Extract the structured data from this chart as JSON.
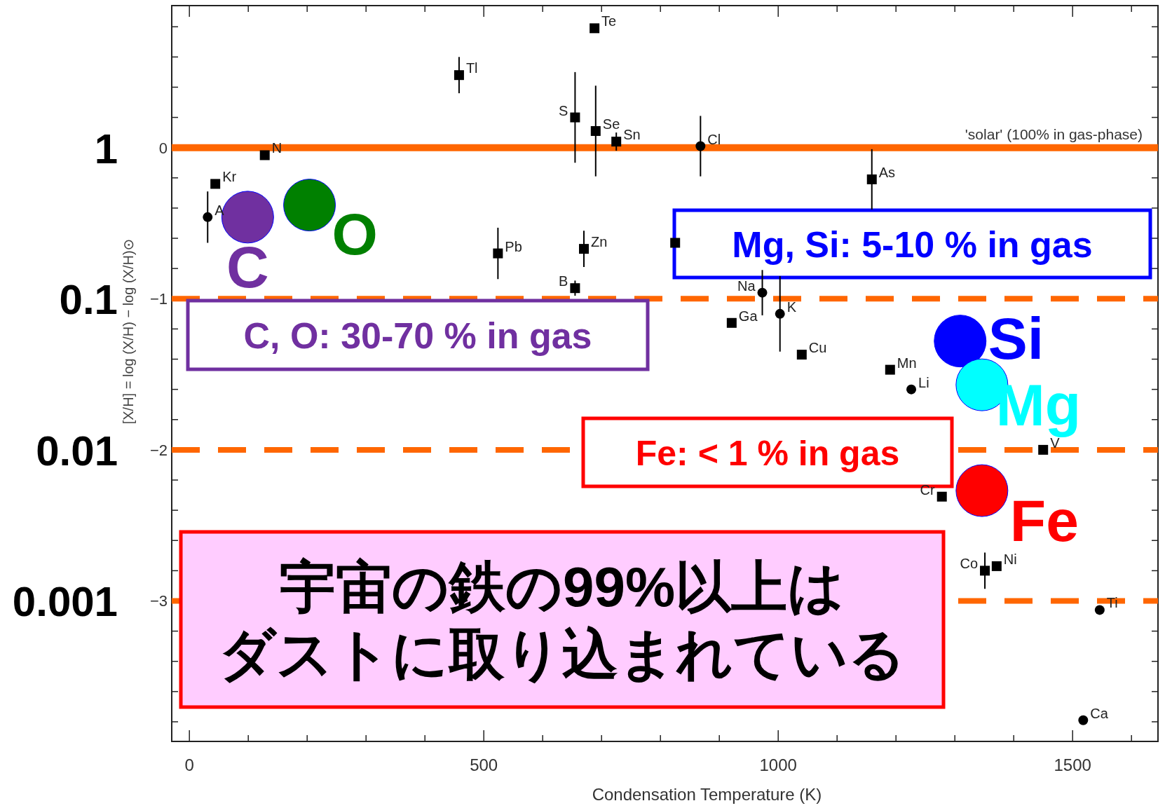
{
  "chart_data": {
    "type": "scatter",
    "xlabel": "Condensation Temperature (K)",
    "ylabel": "[X/H] = log (X/H) − log (X/H)⊙",
    "xlim": [
      -30,
      1645
    ],
    "ylim": [
      -3.93,
      0.94
    ],
    "xticks": [
      {
        "value": 0,
        "label": "0"
      },
      {
        "value": 100,
        "label": null
      },
      {
        "value": 200,
        "label": null
      },
      {
        "value": 300,
        "label": null
      },
      {
        "value": 400,
        "label": null
      },
      {
        "value": 500,
        "label": "500"
      },
      {
        "value": 600,
        "label": null
      },
      {
        "value": 700,
        "label": null
      },
      {
        "value": 800,
        "label": null
      },
      {
        "value": 900,
        "label": null
      },
      {
        "value": 1000,
        "label": "1000"
      },
      {
        "value": 1100,
        "label": null
      },
      {
        "value": 1200,
        "label": null
      },
      {
        "value": 1300,
        "label": null
      },
      {
        "value": 1400,
        "label": null
      },
      {
        "value": 1500,
        "label": "1500"
      },
      {
        "value": 1600,
        "label": null
      }
    ],
    "yticks": [
      {
        "value": 0.8,
        "label": null
      },
      {
        "value": 0.6,
        "label": null
      },
      {
        "value": 0.4,
        "label": null
      },
      {
        "value": 0.2,
        "label": null
      },
      0,
      {
        "value": -0.2,
        "label": null
      },
      {
        "value": -0.4,
        "label": null
      },
      {
        "value": -0.6,
        "label": null
      },
      {
        "value": -0.8,
        "label": null
      },
      -1,
      {
        "value": -1.2,
        "label": null
      },
      {
        "value": -1.4,
        "label": null
      },
      {
        "value": -1.6,
        "label": null
      },
      {
        "value": -1.8,
        "label": null
      },
      -2,
      {
        "value": -2.2,
        "label": null
      },
      {
        "value": -2.4,
        "label": null
      },
      {
        "value": -2.6,
        "label": null
      },
      {
        "value": -2.8,
        "label": null
      },
      -3,
      {
        "value": -3.2,
        "label": null
      },
      {
        "value": -3.4,
        "label": null
      },
      {
        "value": -3.6,
        "label": null
      },
      {
        "value": -3.8,
        "label": null
      }
    ],
    "log": "y2",
    "y2lim": [
      0.000117,
      8.7
    ],
    "y2ticks": [
      1,
      0.1,
      0.01,
      0.001
    ],
    "series": [
      {
        "marker": "square",
        "color": "#000000",
        "x": [
          688,
          458,
          655,
          690,
          725,
          128,
          44,
          524,
          670,
          655,
          825,
          921,
          1040,
          1190,
          1159,
          1450,
          1278,
          1351,
          1371
        ],
        "values": [
          0.79,
          0.48,
          0.2,
          0.11,
          0.04,
          -0.05,
          -0.24,
          -0.7,
          -0.67,
          -0.93,
          -0.63,
          -1.16,
          -1.37,
          -1.47,
          -0.21,
          -2.0,
          -2.31,
          -2.8,
          -2.77
        ],
        "errors": [
          null,
          0.12,
          0.3,
          0.3,
          0.06,
          null,
          null,
          0.17,
          0.12,
          0.05,
          null,
          null,
          null,
          null,
          0.2,
          null,
          null,
          0.12,
          null
        ]
      },
      {
        "marker": "circle",
        "color": "#000000",
        "x": [
          868,
          31,
          973,
          1003,
          1226,
          1546,
          1518
        ],
        "values": [
          0.01,
          -0.46,
          -0.96,
          -1.1,
          -1.6,
          -3.06,
          -3.79
        ],
        "errors": [
          0.2,
          0.17,
          0.15,
          0.25,
          null,
          null,
          null
        ]
      },
      {
        "marker": "circle",
        "name": "C",
        "color": "#7030a0",
        "x": [
          99
        ],
        "values": [
          -0.46
        ]
      },
      {
        "marker": "circle",
        "name": "O",
        "color": "#008000",
        "x": [
          204
        ],
        "values": [
          -0.38
        ]
      },
      {
        "marker": "circle",
        "name": "Si",
        "color": "#0000ff",
        "x": [
          1309
        ],
        "values": [
          -1.28
        ]
      },
      {
        "marker": "circle",
        "name": "Mg",
        "color": "#00ffff",
        "x": [
          1346
        ],
        "values": [
          -1.57
        ]
      },
      {
        "marker": "circle",
        "name": "Fe",
        "color": "#ff0000",
        "x": [
          1346
        ],
        "values": [
          -2.27
        ]
      }
    ],
    "ref_lines": [
      {
        "axis": "y",
        "value": 0,
        "color": "#ff6600",
        "line_style": "solid"
      },
      {
        "axis": "y",
        "value": -1,
        "color": "#ff6600",
        "line_style": "dashed"
      },
      {
        "axis": "y",
        "value": -2,
        "color": "#ff6600",
        "line_style": "dashed"
      },
      {
        "axis": "y",
        "value": -3,
        "color": "#ff6600",
        "line_style": "dashed"
      }
    ],
    "annotations": [
      "'solar' (100% in gas-phase)",
      "C, O: 30-70 % in gas",
      "Mg, Si: 5-10 % in gas",
      "Fe: < 1 % in gas",
      "宇宙の鉄の99%以上はダストに取り込まれている",
      {
        "text": "Te",
        "x": 688,
        "y": 0.79
      },
      {
        "text": "Tl",
        "x": 458,
        "y": 0.48
      },
      {
        "text": "S",
        "x": 655,
        "y": 0.2
      },
      {
        "text": "Se",
        "x": 690,
        "y": 0.11
      },
      {
        "text": "Sn",
        "x": 725,
        "y": 0.04
      },
      {
        "text": "N",
        "x": 128,
        "y": -0.05
      },
      {
        "text": "Kr",
        "x": 44,
        "y": -0.24
      },
      {
        "text": "Pb",
        "x": 524,
        "y": -0.7
      },
      {
        "text": "Zn",
        "x": 670,
        "y": -0.67
      },
      {
        "text": "B",
        "x": 655,
        "y": -0.93
      },
      {
        "text": "Ga",
        "x": 921,
        "y": -1.16
      },
      {
        "text": "Cu",
        "x": 1040,
        "y": -1.37
      },
      {
        "text": "Mn",
        "x": 1190,
        "y": -1.47
      },
      {
        "text": "As",
        "x": 1159,
        "y": -0.21
      },
      {
        "text": "V",
        "x": 1450,
        "y": -2.0
      },
      {
        "text": "Cr",
        "x": 1278,
        "y": -2.31
      },
      {
        "text": "Co",
        "x": 1351,
        "y": -2.8
      },
      {
        "text": "Ni",
        "x": 1371,
        "y": -2.77
      },
      {
        "text": "Cl",
        "x": 868,
        "y": 0.01
      },
      {
        "text": "A",
        "x": 31,
        "y": -0.46
      },
      {
        "text": "Na",
        "x": 973,
        "y": -0.96
      },
      {
        "text": "K",
        "x": 1003,
        "y": -1.1
      },
      {
        "text": "Li",
        "x": 1226,
        "y": -1.6
      },
      {
        "text": "Ti",
        "x": 1546,
        "y": -3.06
      },
      {
        "text": "Ca",
        "x": 1518,
        "y": -3.79
      }
    ]
  }
}
